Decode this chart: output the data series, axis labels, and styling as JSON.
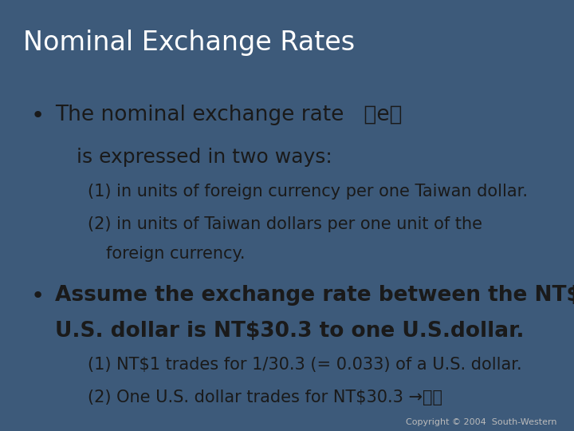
{
  "title": "Nominal Exchange Rates",
  "title_color": "#FFFFFF",
  "slide_bg_color": "#3D5A7A",
  "content_bg_color": "#F0E8D0",
  "copyright": "Copyright © 2004  South-Western",
  "bullet1_main": "The nominal exchange rate   （e）",
  "bullet1_sub": "is expressed in two ways:",
  "bullet1_item1": "(1) in units of foreign currency per one Taiwan dollar.",
  "bullet1_item2_line1": "(2) in units of Taiwan dollars per one unit of the",
  "bullet1_item2_line2": "      foreign currency.",
  "bullet2_main_line1": "Assume the exchange rate between the NT$ and",
  "bullet2_main_line2": "U.S. dollar is NT$30.3 to one U.S.dollar.",
  "bullet2_item1": "(1) NT$1 trades for 1/30.3 (= 0.033) of a U.S. dollar.",
  "bullet2_item2": "(2) One U.S. dollar trades for NT$30.3 →採用",
  "title_fontsize": 24,
  "bullet_main_fontsize": 19,
  "bullet_sub_fontsize": 18,
  "bullet_item_fontsize": 15,
  "copyright_fontsize": 8,
  "text_color": "#1a1a1a"
}
